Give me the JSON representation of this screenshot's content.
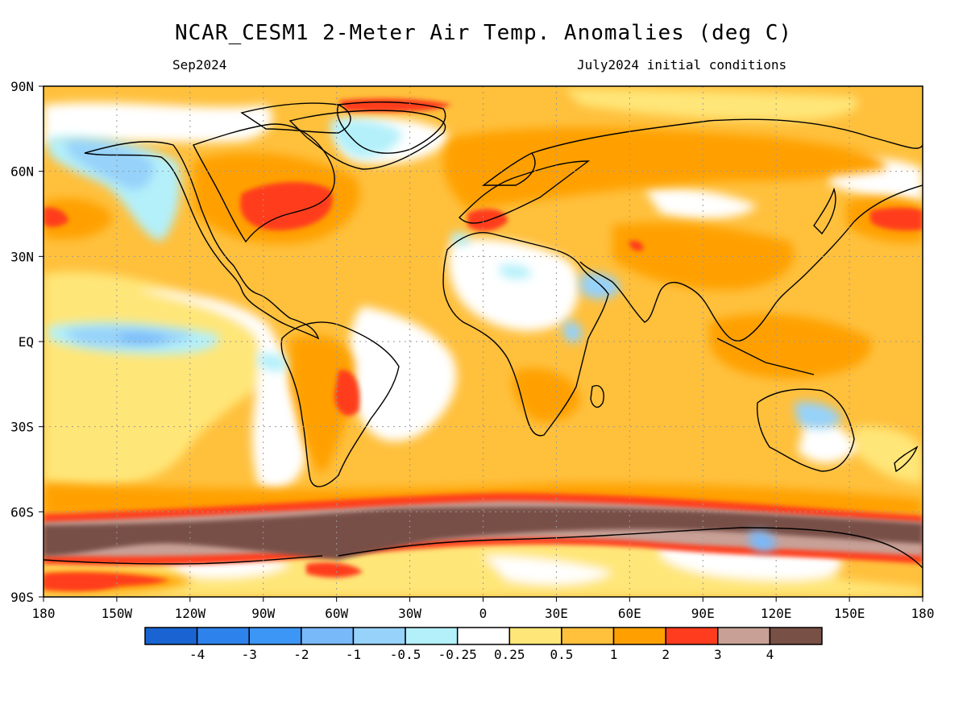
{
  "title": "NCAR_CESM1 2-Meter Air Temp. Anomalies (deg C)",
  "valid_month": "Sep2024",
  "initial_conditions": "July2024 initial conditions",
  "map": {
    "lon_ticks": [
      "180",
      "150W",
      "120W",
      "90W",
      "60W",
      "30W",
      "0",
      "30E",
      "60E",
      "90E",
      "120E",
      "150E",
      "180"
    ],
    "lat_ticks": [
      "90N",
      "60N",
      "30N",
      "EQ",
      "30S",
      "60S",
      "90S"
    ],
    "lon_range": [
      -180,
      180
    ],
    "lat_range": [
      -90,
      90
    ],
    "grid": "dotted",
    "dominant_pattern": "warm anomalies over most land and oceans; strongest (>4 deg C) band around Antarctic coast near 60-70S; cool anomalies in equatorial east Pacific, NE Pacific, Arabian Peninsula, central Australia"
  },
  "colorbar": {
    "labels": [
      "-4",
      "-3",
      "-2",
      "-1",
      "-0.5",
      "-0.25",
      "0.25",
      "0.5",
      "1",
      "2",
      "3",
      "4"
    ],
    "colors": [
      "#1964d2",
      "#2d82eb",
      "#3c96f5",
      "#78b9fa",
      "#96d2fa",
      "#b4f0fa",
      "#ffffff",
      "#ffe678",
      "#ffc03c",
      "#ffa000",
      "#ff3c1e",
      "#c8a096",
      "#785046"
    ]
  }
}
